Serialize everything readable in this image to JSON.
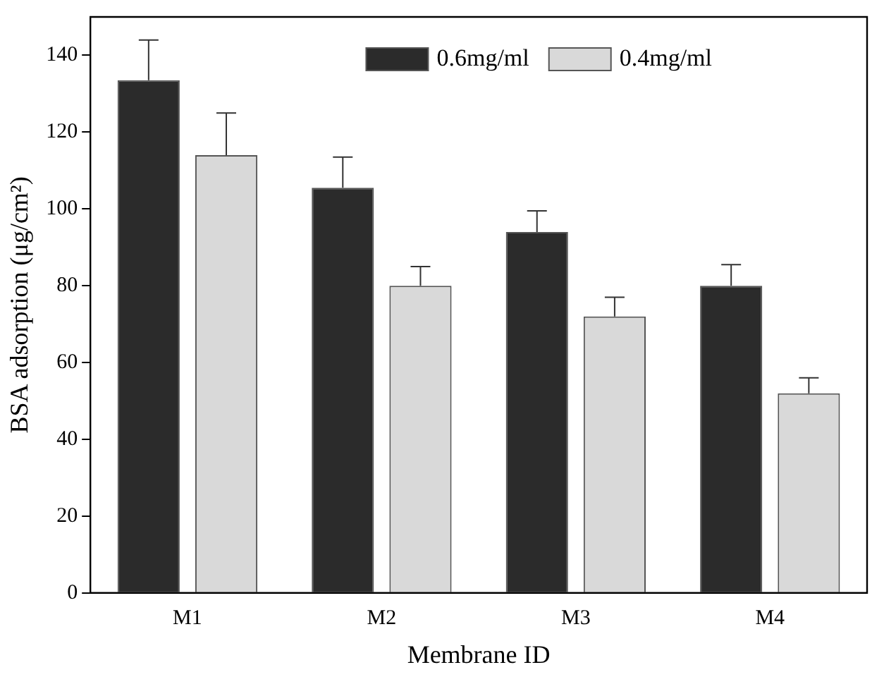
{
  "chart_data": {
    "type": "bar",
    "xlabel": "Membrane ID",
    "ylabel": "BSA adsorption (μg/cm²)",
    "categories": [
      "M1",
      "M2",
      "M3",
      "M4"
    ],
    "series": [
      {
        "name": "0.6mg/ml",
        "color": "#2b2b2b",
        "values": [
          133.5,
          105.5,
          94,
          80
        ],
        "errors": [
          [
            133.5,
            144
          ],
          [
            105.5,
            113.5
          ],
          [
            94,
            99.5
          ],
          [
            80,
            85.5
          ]
        ]
      },
      {
        "name": "0.4mg/ml",
        "color": "#d9d9d9",
        "values": [
          114,
          80,
          72,
          52
        ],
        "errors": [
          [
            114,
            125
          ],
          [
            80,
            85
          ],
          [
            72,
            77
          ],
          [
            52,
            56
          ]
        ]
      }
    ],
    "ylim": [
      0,
      150
    ],
    "yticks": [
      0,
      20,
      40,
      60,
      80,
      100,
      120,
      140
    ],
    "grid": false,
    "legend": "top right"
  }
}
